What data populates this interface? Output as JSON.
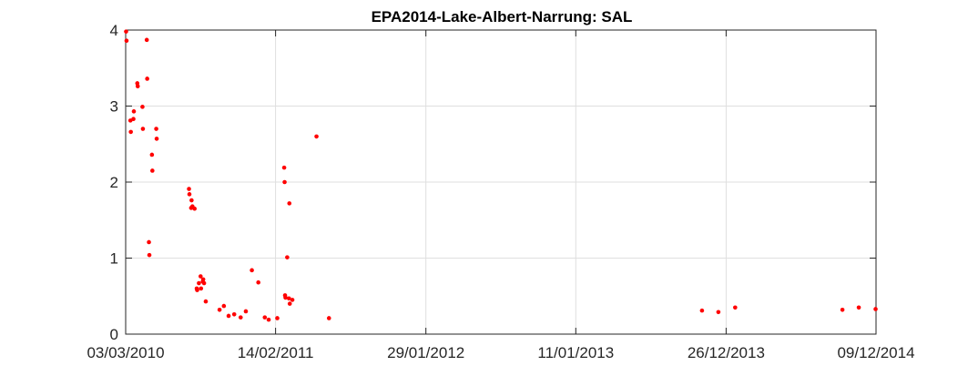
{
  "chart_data": {
    "type": "scatter",
    "title": "EPA2014-Lake-Albert-Narrung: SAL",
    "xlabel": "",
    "ylabel": "",
    "x_axis": "date",
    "xlim": [
      "2010-03-03",
      "2014-12-09"
    ],
    "ylim": [
      0,
      4
    ],
    "x_ticks": [
      "2010-03-03",
      "2011-02-14",
      "2012-01-29",
      "2013-01-11",
      "2013-12-26",
      "2014-12-09"
    ],
    "x_tick_labels": [
      "03/03/2010",
      "14/02/2011",
      "29/01/2012",
      "11/01/2013",
      "26/12/2013",
      "09/12/2014"
    ],
    "y_ticks": [
      0,
      1,
      2,
      3,
      4
    ],
    "y_tick_labels": [
      "0",
      "1",
      "2",
      "3",
      "4"
    ],
    "grid": true,
    "marker_color": "#ff0000",
    "series": [
      {
        "points": [
          [
            "2010-03-04",
            3.98
          ],
          [
            "2010-03-05",
            3.86
          ],
          [
            "2010-03-14",
            2.81
          ],
          [
            "2010-03-15",
            2.66
          ],
          [
            "2010-03-21",
            2.83
          ],
          [
            "2010-03-22",
            2.93
          ],
          [
            "2010-03-30",
            3.3
          ],
          [
            "2010-03-31",
            3.26
          ],
          [
            "2010-04-11",
            2.99
          ],
          [
            "2010-04-12",
            2.7
          ],
          [
            "2010-04-21",
            3.87
          ],
          [
            "2010-04-22",
            3.36
          ],
          [
            "2010-04-26",
            1.21
          ],
          [
            "2010-04-27",
            1.04
          ],
          [
            "2010-05-03",
            2.36
          ],
          [
            "2010-05-04",
            2.15
          ],
          [
            "2010-05-13",
            2.7
          ],
          [
            "2010-05-14",
            2.57
          ],
          [
            "2010-07-28",
            1.91
          ],
          [
            "2010-07-29",
            1.84
          ],
          [
            "2010-08-02",
            1.66
          ],
          [
            "2010-08-03",
            1.76
          ],
          [
            "2010-08-05",
            1.68
          ],
          [
            "2010-08-10",
            1.65
          ],
          [
            "2010-08-15",
            0.6
          ],
          [
            "2010-08-16",
            0.58
          ],
          [
            "2010-08-20",
            0.67
          ],
          [
            "2010-08-24",
            0.76
          ],
          [
            "2010-08-25",
            0.6
          ],
          [
            "2010-08-29",
            0.69
          ],
          [
            "2010-08-30",
            0.72
          ],
          [
            "2010-09-01",
            0.67
          ],
          [
            "2010-09-05",
            0.43
          ],
          [
            "2010-10-07",
            0.32
          ],
          [
            "2010-10-17",
            0.37
          ],
          [
            "2010-10-28",
            0.24
          ],
          [
            "2010-11-10",
            0.26
          ],
          [
            "2010-11-25",
            0.22
          ],
          [
            "2010-12-07",
            0.3
          ],
          [
            "2010-12-21",
            0.84
          ],
          [
            "2011-01-05",
            0.68
          ],
          [
            "2011-01-20",
            0.22
          ],
          [
            "2011-01-29",
            0.19
          ],
          [
            "2011-02-18",
            0.21
          ],
          [
            "2011-03-06",
            2.19
          ],
          [
            "2011-03-07",
            2.0
          ],
          [
            "2011-03-08",
            0.51
          ],
          [
            "2011-03-09",
            0.48
          ],
          [
            "2011-03-13",
            1.01
          ],
          [
            "2011-03-17",
            0.47
          ],
          [
            "2011-03-18",
            1.72
          ],
          [
            "2011-03-19",
            0.4
          ],
          [
            "2011-03-25",
            0.45
          ],
          [
            "2011-05-20",
            2.6
          ],
          [
            "2011-06-18",
            0.21
          ],
          [
            "2013-10-31",
            0.31
          ],
          [
            "2013-12-08",
            0.29
          ],
          [
            "2014-01-16",
            0.35
          ],
          [
            "2014-09-22",
            0.32
          ],
          [
            "2014-10-30",
            0.35
          ],
          [
            "2014-12-08",
            0.33
          ]
        ]
      }
    ]
  }
}
